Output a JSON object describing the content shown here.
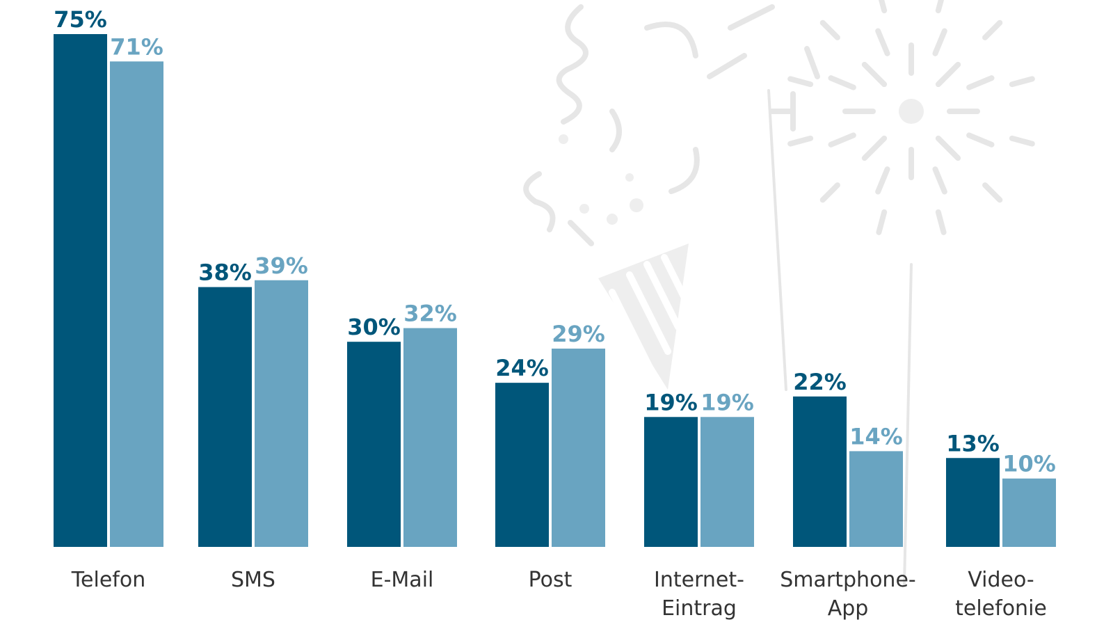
{
  "colors": {
    "series_dark": "#00567a",
    "series_light": "#69a4c1",
    "background": "#ffffff",
    "decoration": "#e6e6e6",
    "category_text": "#333333"
  },
  "icons": [
    "party-popper-icon",
    "firework-icon"
  ],
  "chart_data": {
    "type": "bar",
    "categories": [
      [
        "Telefon"
      ],
      [
        "SMS"
      ],
      [
        "E-Mail"
      ],
      [
        "Post"
      ],
      [
        "Internet-",
        "Eintrag"
      ],
      [
        "Smartphone-",
        "App"
      ],
      [
        "Video-",
        "telefonie"
      ]
    ],
    "series": [
      {
        "values": [
          75,
          38,
          30,
          24,
          19,
          22,
          13
        ],
        "labels": [
          "75%",
          "38%",
          "30%",
          "24%",
          "19%",
          "22%",
          "13%"
        ],
        "color": "#00567a"
      },
      {
        "values": [
          71,
          39,
          32,
          29,
          19,
          14,
          10
        ],
        "labels": [
          "71%",
          "39%",
          "32%",
          "29%",
          "19%",
          "14%",
          "10%"
        ],
        "color": "#69a4c1"
      }
    ],
    "ylim": [
      0,
      75
    ],
    "grid": false,
    "legend": "none",
    "title": "",
    "xlabel": "",
    "ylabel": ""
  }
}
